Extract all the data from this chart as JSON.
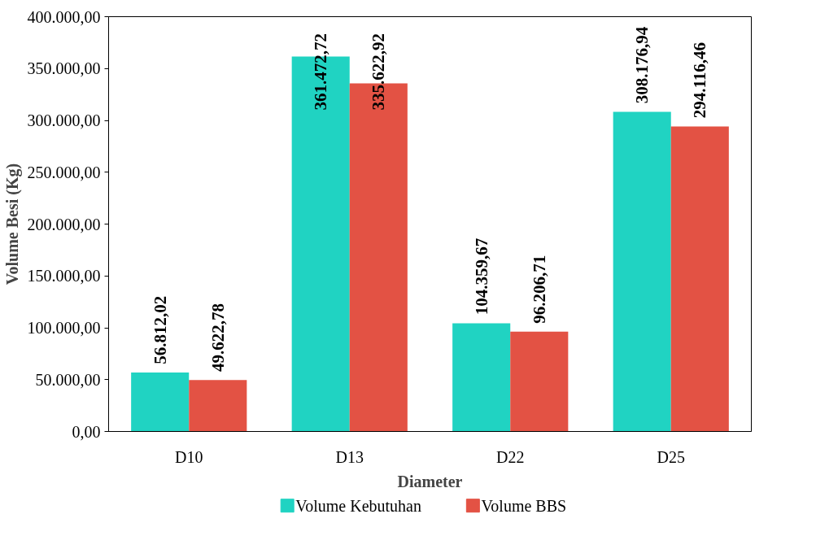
{
  "chart_data": {
    "type": "bar",
    "xlabel": "Diameter",
    "ylabel": "Volume Besi (Kg)",
    "categories": [
      "D10",
      "D13",
      "D22",
      "D25"
    ],
    "series": [
      {
        "name": "Volume Kebutuhan",
        "color": "#20d3c2",
        "values": [
          56812.02,
          361472.72,
          104359.67,
          308176.94
        ],
        "value_labels": [
          "56.812,02",
          "361.472,72",
          "104.359,67",
          "308.176,94"
        ]
      },
      {
        "name": "Volume BBS",
        "color": "#e35244",
        "values": [
          49622.78,
          335622.92,
          96206.71,
          294116.46
        ],
        "value_labels": [
          "49.622,78",
          "335.622,92",
          "96.206,71",
          "294.116,46"
        ]
      }
    ],
    "ylim": [
      0,
      400000
    ],
    "yticks": [
      {
        "value": 0,
        "label": "0,00"
      },
      {
        "value": 50000,
        "label": "50.000,00"
      },
      {
        "value": 100000,
        "label": "100.000,00"
      },
      {
        "value": 150000,
        "label": "150.000,00"
      },
      {
        "value": 200000,
        "label": "200.000,00"
      },
      {
        "value": 250000,
        "label": "250.000,00"
      },
      {
        "value": 300000,
        "label": "300.000,00"
      },
      {
        "value": 350000,
        "label": "350.000,00"
      },
      {
        "value": 400000,
        "label": "400.000,00"
      }
    ],
    "grid": false,
    "legend": "bottom"
  }
}
